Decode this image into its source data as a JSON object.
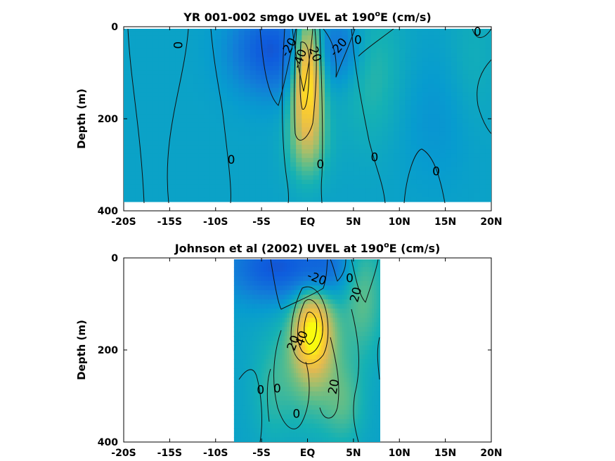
{
  "chart_data": [
    {
      "type": "heatmap",
      "title": "YR 001-002 smgo UVEL at 190",
      "title_sup": "o",
      "title_end": "E (cm/s)",
      "ylabel": "Depth (m)",
      "xlabel": "",
      "xlim": [
        -20,
        20
      ],
      "ylim": [
        400,
        0
      ],
      "x_ticks": [
        -20,
        -15,
        -10,
        -5,
        0,
        5,
        10,
        15,
        20
      ],
      "x_tick_labels": [
        "-20S",
        "-15S",
        "-10S",
        "-5S",
        "EQ",
        "5N",
        "10N",
        "15N",
        "20N"
      ],
      "y_ticks": [
        0,
        200,
        400
      ],
      "y_tick_labels": [
        "0",
        "200",
        "400"
      ],
      "data_extent": {
        "lat": [
          -20,
          20
        ],
        "depth": [
          0,
          380
        ]
      },
      "features": [
        {
          "kind": "jet",
          "lat": 0,
          "depth": 110,
          "wlat": 1.1,
          "wdepth": 90,
          "value": 95
        },
        {
          "kind": "jet",
          "lat": 0,
          "depth": 250,
          "wlat": 1.6,
          "wdepth": 60,
          "value": 25
        },
        {
          "kind": "westward",
          "lat": -4,
          "depth": 50,
          "wlat": 3.0,
          "wdepth": 65,
          "value": -45
        },
        {
          "kind": "westward",
          "lat": 3.5,
          "depth": 45,
          "wlat": 1.8,
          "wdepth": 55,
          "value": -25
        },
        {
          "kind": "eastward",
          "lat": 7,
          "depth": 100,
          "wlat": 2.5,
          "wdepth": 110,
          "value": 15
        },
        {
          "kind": "eastward",
          "lat": 18,
          "depth": 80,
          "wlat": 2,
          "wdepth": 110,
          "value": 8
        },
        {
          "kind": "westward",
          "lat": 14,
          "depth": 200,
          "wlat": 3,
          "wdepth": 100,
          "value": -8
        }
      ],
      "contour_labels": [
        {
          "text": "0",
          "lat": -14,
          "depth": 40,
          "angle": -90
        },
        {
          "text": "-20",
          "lat": -2,
          "depth": 45,
          "angle": -60
        },
        {
          "text": "-40",
          "lat": -0.8,
          "depth": 70,
          "angle": -70
        },
        {
          "text": "20",
          "lat": 0.8,
          "depth": 60,
          "angle": 70
        },
        {
          "text": "-20",
          "lat": 3.4,
          "depth": 45,
          "angle": -50
        },
        {
          "text": "0",
          "lat": 5.5,
          "depth": 30,
          "angle": 0
        },
        {
          "text": "0",
          "lat": 18.5,
          "depth": 12,
          "angle": 0
        },
        {
          "text": "0",
          "lat": -8.3,
          "depth": 290,
          "angle": 0
        },
        {
          "text": "0",
          "lat": 1.4,
          "depth": 300,
          "angle": 0
        },
        {
          "text": "0",
          "lat": 7.3,
          "depth": 285,
          "angle": 0
        },
        {
          "text": "0",
          "lat": 14,
          "depth": 315,
          "angle": 0
        }
      ]
    },
    {
      "type": "heatmap",
      "title": "Johnson et al (2002) UVEL at 190",
      "title_sup": "o",
      "title_end": "E (cm/s)",
      "ylabel": "Depth (m)",
      "xlabel": "",
      "xlim": [
        -20,
        20
      ],
      "ylim": [
        400,
        0
      ],
      "x_ticks": [
        -20,
        -15,
        -10,
        -5,
        0,
        5,
        10,
        15,
        20
      ],
      "x_tick_labels": [
        "-20S",
        "-15S",
        "-10S",
        "-5S",
        "EQ",
        "5N",
        "10N",
        "15N",
        "20N"
      ],
      "y_ticks": [
        0,
        200,
        400
      ],
      "y_tick_labels": [
        "0",
        "200",
        "400"
      ],
      "data_extent": {
        "lat": [
          -8,
          8
        ],
        "depth": [
          0,
          400
        ]
      },
      "features": [
        {
          "kind": "jet",
          "lat": 0.6,
          "depth": 160,
          "wlat": 1.4,
          "wdepth": 60,
          "value": 80
        },
        {
          "kind": "jet",
          "lat": 0.5,
          "depth": 230,
          "wlat": 2.5,
          "wdepth": 90,
          "value": 30
        },
        {
          "kind": "westward",
          "lat": -3.5,
          "depth": 20,
          "wlat": 3.5,
          "wdepth": 50,
          "value": -45
        },
        {
          "kind": "westward",
          "lat": 2,
          "depth": 20,
          "wlat": 2,
          "wdepth": 45,
          "value": -25
        },
        {
          "kind": "eastward",
          "lat": 6,
          "depth": 80,
          "wlat": 1.6,
          "wdepth": 90,
          "value": 25
        },
        {
          "kind": "eastward",
          "lat": -4,
          "depth": 290,
          "wlat": 1.5,
          "wdepth": 80,
          "value": 12
        },
        {
          "kind": "eastward",
          "lat": 4,
          "depth": 320,
          "wlat": 1.5,
          "wdepth": 60,
          "value": 18
        }
      ],
      "contour_labels": [
        {
          "text": "-20",
          "lat": 1.0,
          "depth": 45,
          "angle": 20
        },
        {
          "text": "20",
          "lat": 5.3,
          "depth": 80,
          "angle": -75
        },
        {
          "text": "0",
          "lat": 4.6,
          "depth": 45,
          "angle": 0
        },
        {
          "text": "20",
          "lat": -1.5,
          "depth": 185,
          "angle": -70
        },
        {
          "text": "40",
          "lat": -0.6,
          "depth": 175,
          "angle": -70
        },
        {
          "text": "0",
          "lat": -5.1,
          "depth": 288,
          "angle": 0
        },
        {
          "text": "0",
          "lat": -3.3,
          "depth": 285,
          "angle": 0
        },
        {
          "text": "20",
          "lat": 2.9,
          "depth": 280,
          "angle": -80
        },
        {
          "text": "0",
          "lat": -1.2,
          "depth": 340,
          "angle": 0
        }
      ]
    }
  ]
}
